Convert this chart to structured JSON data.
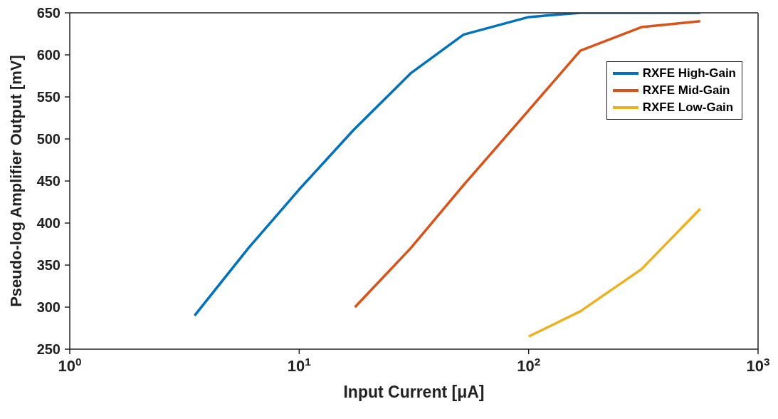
{
  "chart_data": {
    "type": "line",
    "xlabel": "Input Current [μA]",
    "ylabel": "Pseudo-log Amplifier Output [mV]",
    "log": "x",
    "xlim": [
      1,
      1000
    ],
    "xticks": [
      {
        "value": 1,
        "label": "10$^{0}$"
      },
      {
        "value": 10,
        "label": "10$^{1}$"
      },
      {
        "value": 100,
        "label": "10$^{2}$"
      },
      {
        "value": 1000,
        "label": "10$^{3}$"
      }
    ],
    "ylim": [
      250,
      650
    ],
    "yticks": [
      250,
      300,
      350,
      400,
      450,
      500,
      550,
      600,
      650
    ],
    "legend": "top right",
    "line_style": "solid",
    "marker": "none",
    "series": [
      {
        "name": "RXFE High-Gain",
        "color": "#0072bd",
        "x": [
          3.5,
          6,
          10,
          17.3,
          30.6,
          52,
          100,
          168,
          560
        ],
        "values": [
          290,
          370,
          440,
          511,
          578,
          624,
          645,
          650,
          650
        ]
      },
      {
        "name": "RXFE Mid-Gain",
        "color": "#d95319",
        "x": [
          17.5,
          30.6,
          52,
          100,
          168,
          310,
          560
        ],
        "values": [
          300,
          370,
          445,
          534,
          605,
          633,
          640
        ]
      },
      {
        "name": "RXFE Low-Gain",
        "color": "#edb120",
        "x": [
          100,
          168,
          310,
          560
        ],
        "values": [
          265,
          295,
          345,
          417
        ]
      }
    ]
  }
}
